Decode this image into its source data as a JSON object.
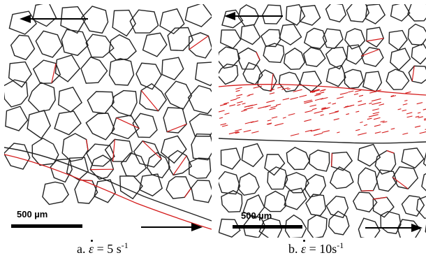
{
  "panels": [
    {
      "id": "a",
      "scale_bar_label": "500 µm",
      "caption": {
        "prefix": "a.",
        "symbol": "ε",
        "equals": "= 5 s",
        "exponent": "-1"
      }
    },
    {
      "id": "b",
      "scale_bar_label": "500 µm",
      "caption": {
        "prefix": "b.",
        "symbol": "ε",
        "equals": "= 10s",
        "exponent": "-1"
      }
    }
  ],
  "colors": {
    "grain_boundary": "#222222",
    "low_angle_boundary": "#d41a1a",
    "arrow": "#000000",
    "background": "#ffffff"
  },
  "icons": [
    "arrow-left-icon",
    "arrow-right-icon"
  ]
}
